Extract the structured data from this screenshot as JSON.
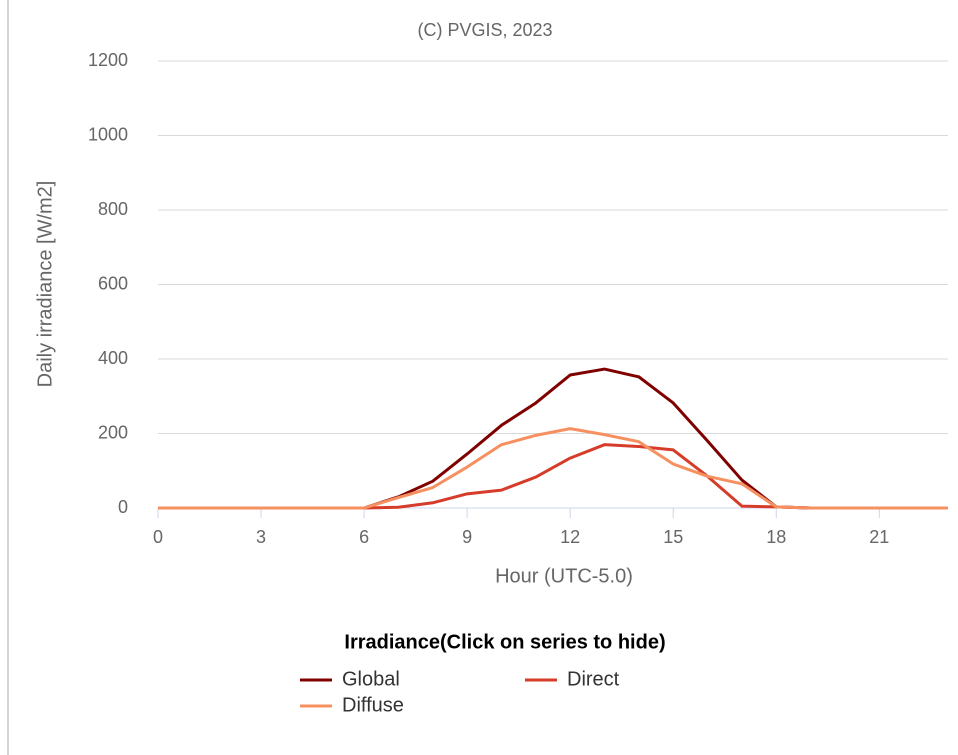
{
  "chart_data": {
    "type": "line",
    "title": "(C) PVGIS, 2023",
    "x_label": "Hour (UTC-5.0)",
    "y_label": "Daily irradiance [W/m2]",
    "x": [
      0,
      1,
      2,
      3,
      4,
      5,
      6,
      7,
      8,
      9,
      10,
      11,
      12,
      13,
      14,
      15,
      16,
      17,
      18,
      19,
      20,
      21,
      22,
      23
    ],
    "series": [
      {
        "name": "Global",
        "color": "#800000",
        "values": [
          0,
          0,
          0,
          0,
          0,
          0,
          0,
          30,
          72,
          145,
          222,
          282,
          357,
          373,
          352,
          282,
          180,
          75,
          3,
          0,
          0,
          0,
          0,
          0
        ]
      },
      {
        "name": "Direct",
        "color": "#d63c2a",
        "values": [
          0,
          0,
          0,
          0,
          0,
          0,
          0,
          2,
          14,
          38,
          48,
          83,
          134,
          170,
          165,
          156,
          85,
          5,
          3,
          0,
          0,
          0,
          0,
          0
        ]
      },
      {
        "name": "Diffuse",
        "color": "#f79060",
        "values": [
          0,
          0,
          0,
          0,
          0,
          0,
          0,
          28,
          55,
          110,
          170,
          195,
          213,
          197,
          178,
          118,
          85,
          65,
          3,
          0,
          0,
          0,
          0,
          0
        ]
      }
    ],
    "xlim": [
      0,
      23
    ],
    "xticks": [
      0,
      3,
      6,
      9,
      12,
      15,
      18,
      21
    ],
    "ylim": [
      0,
      1200
    ],
    "yticks": [
      0,
      200,
      400,
      600,
      800,
      1000,
      1200
    ],
    "grid": true,
    "legend_title": "Irradiance(Click on series to hide)",
    "legend_position": "bottom"
  }
}
